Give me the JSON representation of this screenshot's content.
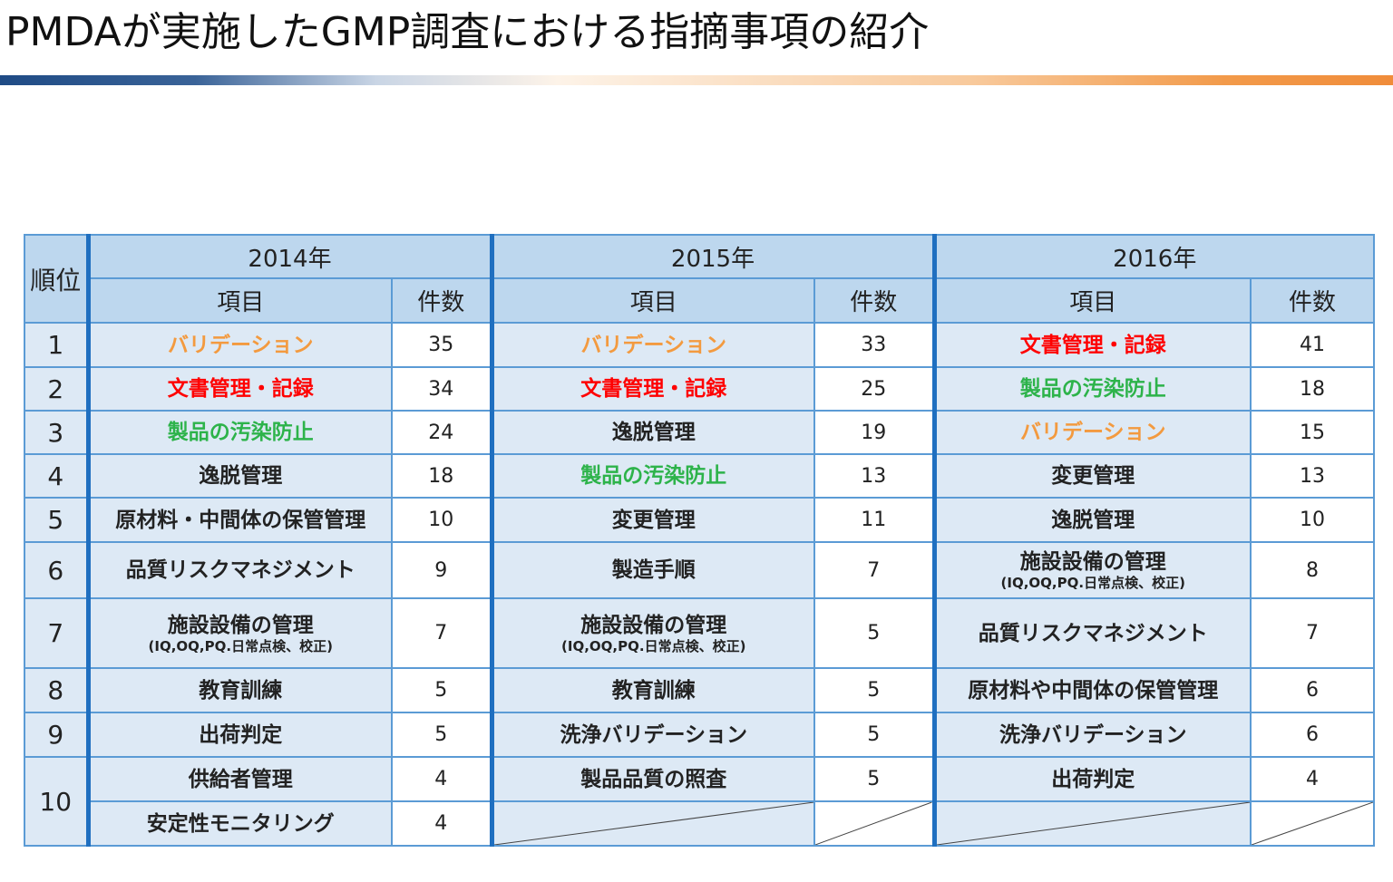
{
  "title": "PMDAが実施したGMP調査における指摘事項の紹介",
  "table": {
    "rank_header": "順位",
    "years": [
      "2014年",
      "2015年",
      "2016年"
    ],
    "item_header": "項目",
    "count_header": "件数",
    "ranks": [
      "1",
      "2",
      "3",
      "4",
      "5",
      "6",
      "7",
      "8",
      "9",
      "10"
    ],
    "colors": {
      "orange": "#f39a3f",
      "red": "#ff0000",
      "green": "#2db34a",
      "header_bg": "#bdd7ee",
      "item_bg": "#dde9f5",
      "border": "#5b9bd5",
      "divider": "#1f6fc0"
    },
    "y2014": [
      {
        "item": "バリデーション",
        "count": "35",
        "color": "orange"
      },
      {
        "item": "文書管理・記録",
        "count": "34",
        "color": "red"
      },
      {
        "item": "製品の汚染防止",
        "count": "24",
        "color": "green"
      },
      {
        "item": "逸脱管理",
        "count": "18"
      },
      {
        "item": "原材料・中間体の保管管理",
        "count": "10"
      },
      {
        "item": "品質リスクマネジメント",
        "count": "9"
      },
      {
        "item": "施設設備の管理",
        "sub": "(IQ,OQ,PQ.日常点検、校正)",
        "count": "7"
      },
      {
        "item": "教育訓練",
        "count": "5"
      },
      {
        "item": "出荷判定",
        "count": "5"
      },
      {
        "item": "供給者管理",
        "count": "4"
      },
      {
        "item": "安定性モニタリング",
        "count": "4"
      }
    ],
    "y2015": [
      {
        "item": "バリデーション",
        "count": "33",
        "color": "orange"
      },
      {
        "item": "文書管理・記録",
        "count": "25",
        "color": "red"
      },
      {
        "item": "逸脱管理",
        "count": "19"
      },
      {
        "item": "製品の汚染防止",
        "count": "13",
        "color": "green"
      },
      {
        "item": "変更管理",
        "count": "11"
      },
      {
        "item": "製造手順",
        "count": "7"
      },
      {
        "item": "施設設備の管理",
        "sub": "(IQ,OQ,PQ.日常点検、校正)",
        "count": "5"
      },
      {
        "item": "教育訓練",
        "count": "5"
      },
      {
        "item": "洗浄バリデーション",
        "count": "5"
      },
      {
        "item": "製品品質の照査",
        "count": "5"
      }
    ],
    "y2016": [
      {
        "item": "文書管理・記録",
        "count": "41",
        "color": "red"
      },
      {
        "item": "製品の汚染防止",
        "count": "18",
        "color": "green"
      },
      {
        "item": "バリデーション",
        "count": "15",
        "color": "orange"
      },
      {
        "item": "変更管理",
        "count": "13"
      },
      {
        "item": "逸脱管理",
        "count": "10"
      },
      {
        "item": "施設設備の管理",
        "sub": "(IQ,OQ,PQ.日常点検、校正)",
        "count": "8"
      },
      {
        "item": "品質リスクマネジメント",
        "count": "7"
      },
      {
        "item": "原材料や中間体の保管管理",
        "count": "6"
      },
      {
        "item": "洗浄バリデーション",
        "count": "6"
      },
      {
        "item": "出荷判定",
        "count": "4"
      }
    ]
  }
}
